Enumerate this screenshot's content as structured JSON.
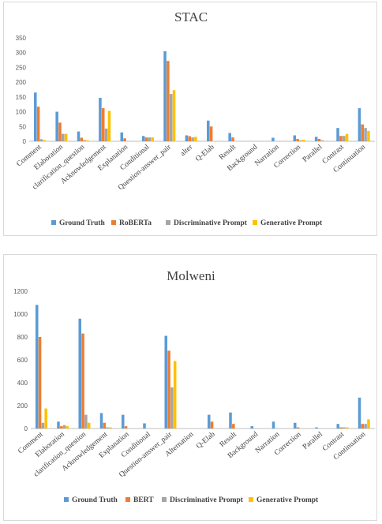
{
  "chart_data": [
    {
      "type": "bar",
      "title": "STAC",
      "xlabel": "",
      "ylabel": "",
      "ylim": [
        0,
        350
      ],
      "yticks": [
        0,
        50,
        100,
        150,
        200,
        250,
        300,
        350
      ],
      "grid": false,
      "legend_position": "bottom",
      "categories": [
        "Comment",
        "Elaboration",
        "clarification_question",
        "Acknowledgement",
        "Explanation",
        "Conditional",
        "Question-answer_pair",
        "alter",
        "Q-Elab",
        "Result",
        "Background",
        "Narration",
        "Correction",
        "Parallel",
        "Contrast",
        "Continuation"
      ],
      "series": [
        {
          "name": "Ground Truth",
          "color": "#5b9bd5",
          "values": [
            165,
            100,
            33,
            147,
            30,
            18,
            305,
            20,
            70,
            28,
            0,
            12,
            20,
            15,
            45,
            112
          ]
        },
        {
          "name": "RoBERTa",
          "color": "#ed7d31",
          "values": [
            117,
            63,
            12,
            112,
            10,
            13,
            272,
            17,
            50,
            13,
            0,
            0,
            8,
            8,
            18,
            57
          ]
        },
        {
          "name": "Discriminative Prompt",
          "color": "#a5a5a5",
          "values": [
            7,
            25,
            4,
            43,
            0,
            13,
            160,
            13,
            0,
            0,
            0,
            0,
            3,
            3,
            18,
            45
          ]
        },
        {
          "name": "Generative Prompt",
          "color": "#ffc000",
          "values": [
            4,
            25,
            3,
            103,
            0,
            13,
            173,
            15,
            0,
            0,
            0,
            0,
            5,
            0,
            25,
            35
          ]
        }
      ]
    },
    {
      "type": "bar",
      "title": "Molweni",
      "xlabel": "",
      "ylabel": "",
      "ylim": [
        0,
        1200
      ],
      "yticks": [
        0,
        200,
        400,
        600,
        800,
        1000,
        1200
      ],
      "grid": false,
      "legend_position": "bottom",
      "categories": [
        "Comment",
        "Elaboration",
        "clarification_question",
        "Acknowledgement",
        "Explanation",
        "Conditional",
        "Question-answer_pair",
        "Alternation",
        "Q-Elab",
        "Result",
        "Background",
        "Narration",
        "Correction",
        "Parallel",
        "Contrast",
        "Continuation"
      ],
      "series": [
        {
          "name": "Ground Truth",
          "color": "#5b9bd5",
          "values": [
            1080,
            60,
            960,
            135,
            120,
            45,
            810,
            0,
            120,
            140,
            20,
            60,
            50,
            10,
            40,
            270
          ]
        },
        {
          "name": "BERT",
          "color": "#ed7d31",
          "values": [
            800,
            20,
            830,
            50,
            20,
            0,
            680,
            0,
            60,
            40,
            0,
            0,
            10,
            0,
            10,
            40
          ]
        },
        {
          "name": "Discriminative Prompt",
          "color": "#a5a5a5",
          "values": [
            50,
            30,
            120,
            10,
            0,
            0,
            360,
            0,
            0,
            0,
            0,
            0,
            0,
            0,
            10,
            40
          ]
        },
        {
          "name": "Generative Prompt",
          "color": "#ffc000",
          "values": [
            175,
            20,
            50,
            10,
            0,
            0,
            590,
            0,
            0,
            0,
            0,
            0,
            0,
            0,
            10,
            80
          ]
        }
      ]
    }
  ]
}
